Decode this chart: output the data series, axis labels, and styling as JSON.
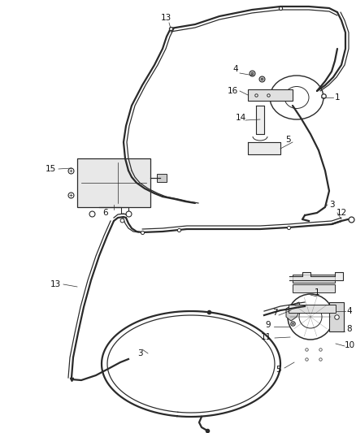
{
  "bg_color": "#ffffff",
  "line_color": "#2a2a2a",
  "text_color": "#111111",
  "font_size": 7.5,
  "lw_cable": 1.6,
  "lw_thin": 0.8
}
